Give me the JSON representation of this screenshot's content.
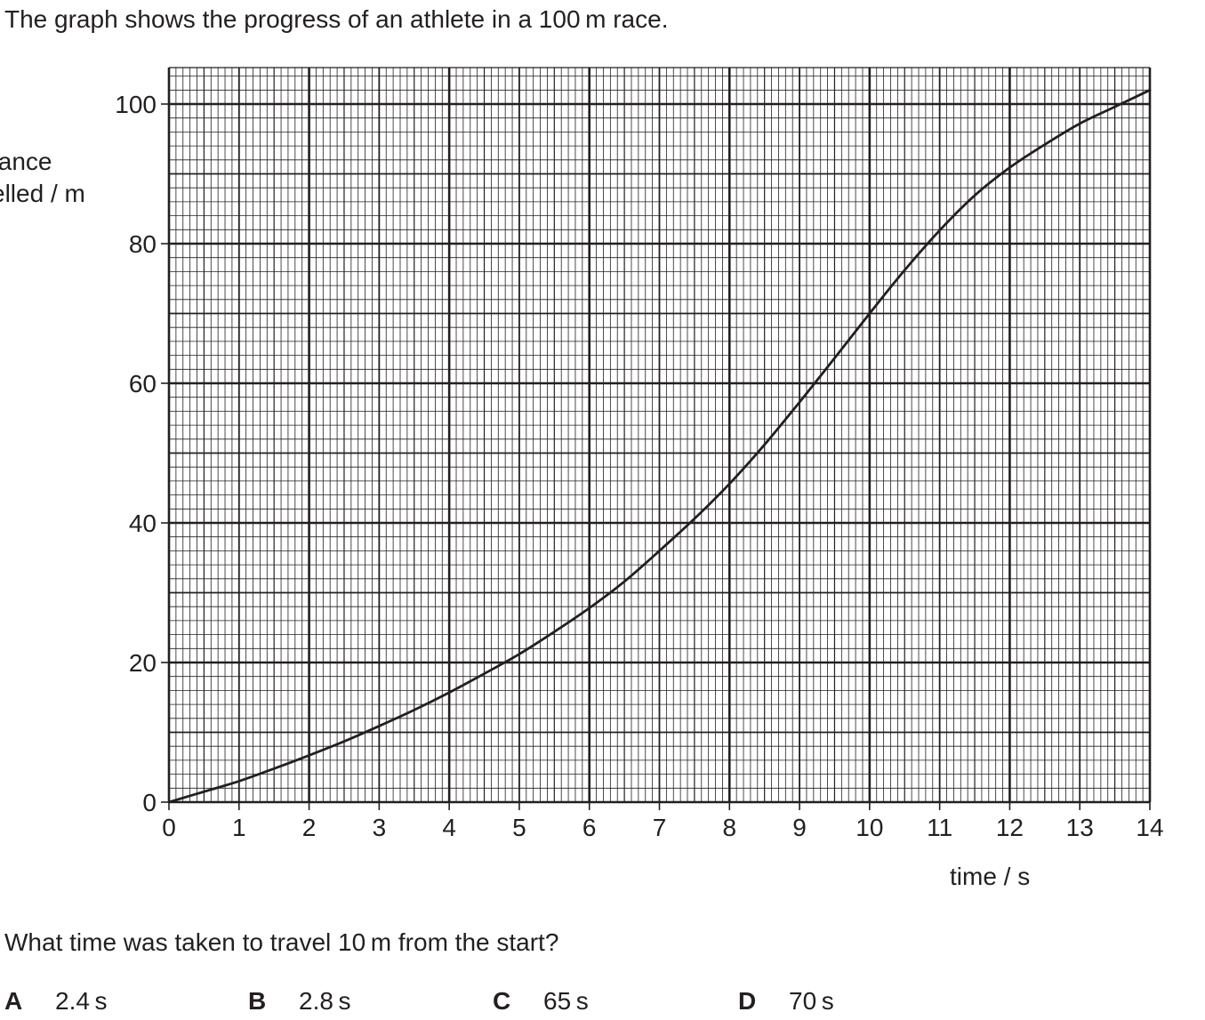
{
  "intro_text": "The graph shows the progress of an athlete in a 100 m race.",
  "question_text": "What time was taken to travel 10 m from the start?",
  "options": [
    {
      "letter": "A",
      "value": "2.4 s"
    },
    {
      "letter": "B",
      "value": "2.8 s"
    },
    {
      "letter": "C",
      "value": "65 s"
    },
    {
      "letter": "D",
      "value": "70 s"
    }
  ],
  "chart_data": {
    "type": "line",
    "xlabel": "time / s",
    "ylabel_lines": [
      "stance",
      "velled  / m"
    ],
    "xlim": [
      0,
      14
    ],
    "ylim": [
      0,
      100
    ],
    "x_ticks": [
      "0",
      "1",
      "2",
      "3",
      "4",
      "5",
      "6",
      "7",
      "8",
      "9",
      "10",
      "11",
      "12",
      "13",
      "14"
    ],
    "y_ticks": [
      "0",
      "20",
      "40",
      "60",
      "80",
      "100"
    ],
    "grid": true,
    "grid_color": "#231f20",
    "line_color": "#231f20",
    "series": [
      {
        "x": [
          0,
          0.5,
          1,
          1.5,
          2,
          2.5,
          3,
          3.5,
          4,
          4.5,
          5,
          5.5,
          6,
          6.5,
          7,
          7.5,
          8,
          8.5,
          9,
          9.5,
          10,
          10.5,
          11,
          11.5,
          12,
          12.5,
          13,
          13.5,
          14
        ],
        "y": [
          0,
          1.5,
          3.0,
          4.8,
          6.7,
          8.7,
          10.9,
          13.2,
          15.7,
          18.4,
          21.2,
          24.4,
          27.8,
          31.6,
          36.0,
          40.6,
          45.6,
          51.2,
          57.3,
          63.6,
          70.0,
          76.2,
          81.9,
          86.9,
          90.9,
          94.2,
          97.2,
          99.6,
          102.0
        ]
      }
    ]
  }
}
